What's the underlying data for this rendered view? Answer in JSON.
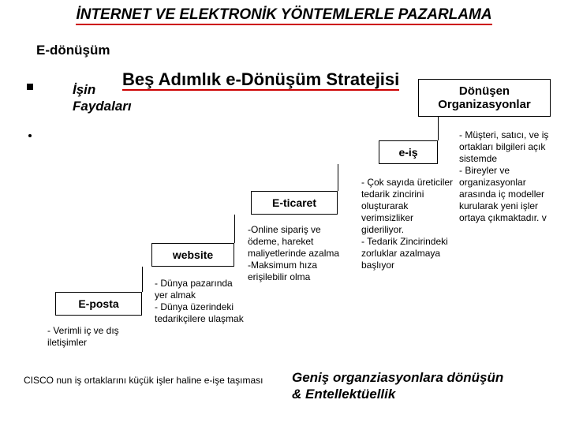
{
  "title": "İNTERNET VE ELEKTRONİK YÖNTEMLERLE PAZARLAMA",
  "subtitle": "E-dönüşüm",
  "strategyTitle": "Beş Adımlık e-Dönüşüm Stratejisi",
  "benefits_l1": "İşin",
  "benefits_l2": "Faydaları",
  "steps": {
    "s1": {
      "label": "E-posta",
      "desc": "- Verimli iç ve dış iletişimler"
    },
    "s2": {
      "label": "website",
      "desc": "- Dünya pazarında yer almak\n- Dünya üzerindeki tedarikçilere ulaşmak"
    },
    "s3": {
      "label": "E-ticaret",
      "desc": "-Online sipariş ve ödeme, hareket maliyetlerinde azalma\n-Maksimum hıza erişilebilir olma"
    },
    "s4": {
      "label": "e-iş",
      "desc": "- Çok sayıda üreticiler tedarik zincirini oluşturarak verimsizliker gideriliyor.\n- Tedarik Zincirindeki zorluklar azalmaya başlıyor"
    },
    "s5": {
      "label": "Dönüşen Organizasyonlar",
      "desc": "- Müşteri, satıcı, ve iş ortakları bilgileri açık sistemde\n- Bireyler ve organizasyonlar arasında iç modeller kurularak yeni işler ortaya çıkmaktadır. v"
    }
  },
  "footer1": "CISCO nun iş ortaklarını küçük işler haline e-işe taşıması",
  "footer2_l1": "Geniş organziasyonlara dönüşün",
  "footer2_l2": "& Entellektüellik",
  "colors": {
    "underline": "#cc0000",
    "background": "#ffffff",
    "text": "#000000",
    "box_border": "#000000"
  }
}
